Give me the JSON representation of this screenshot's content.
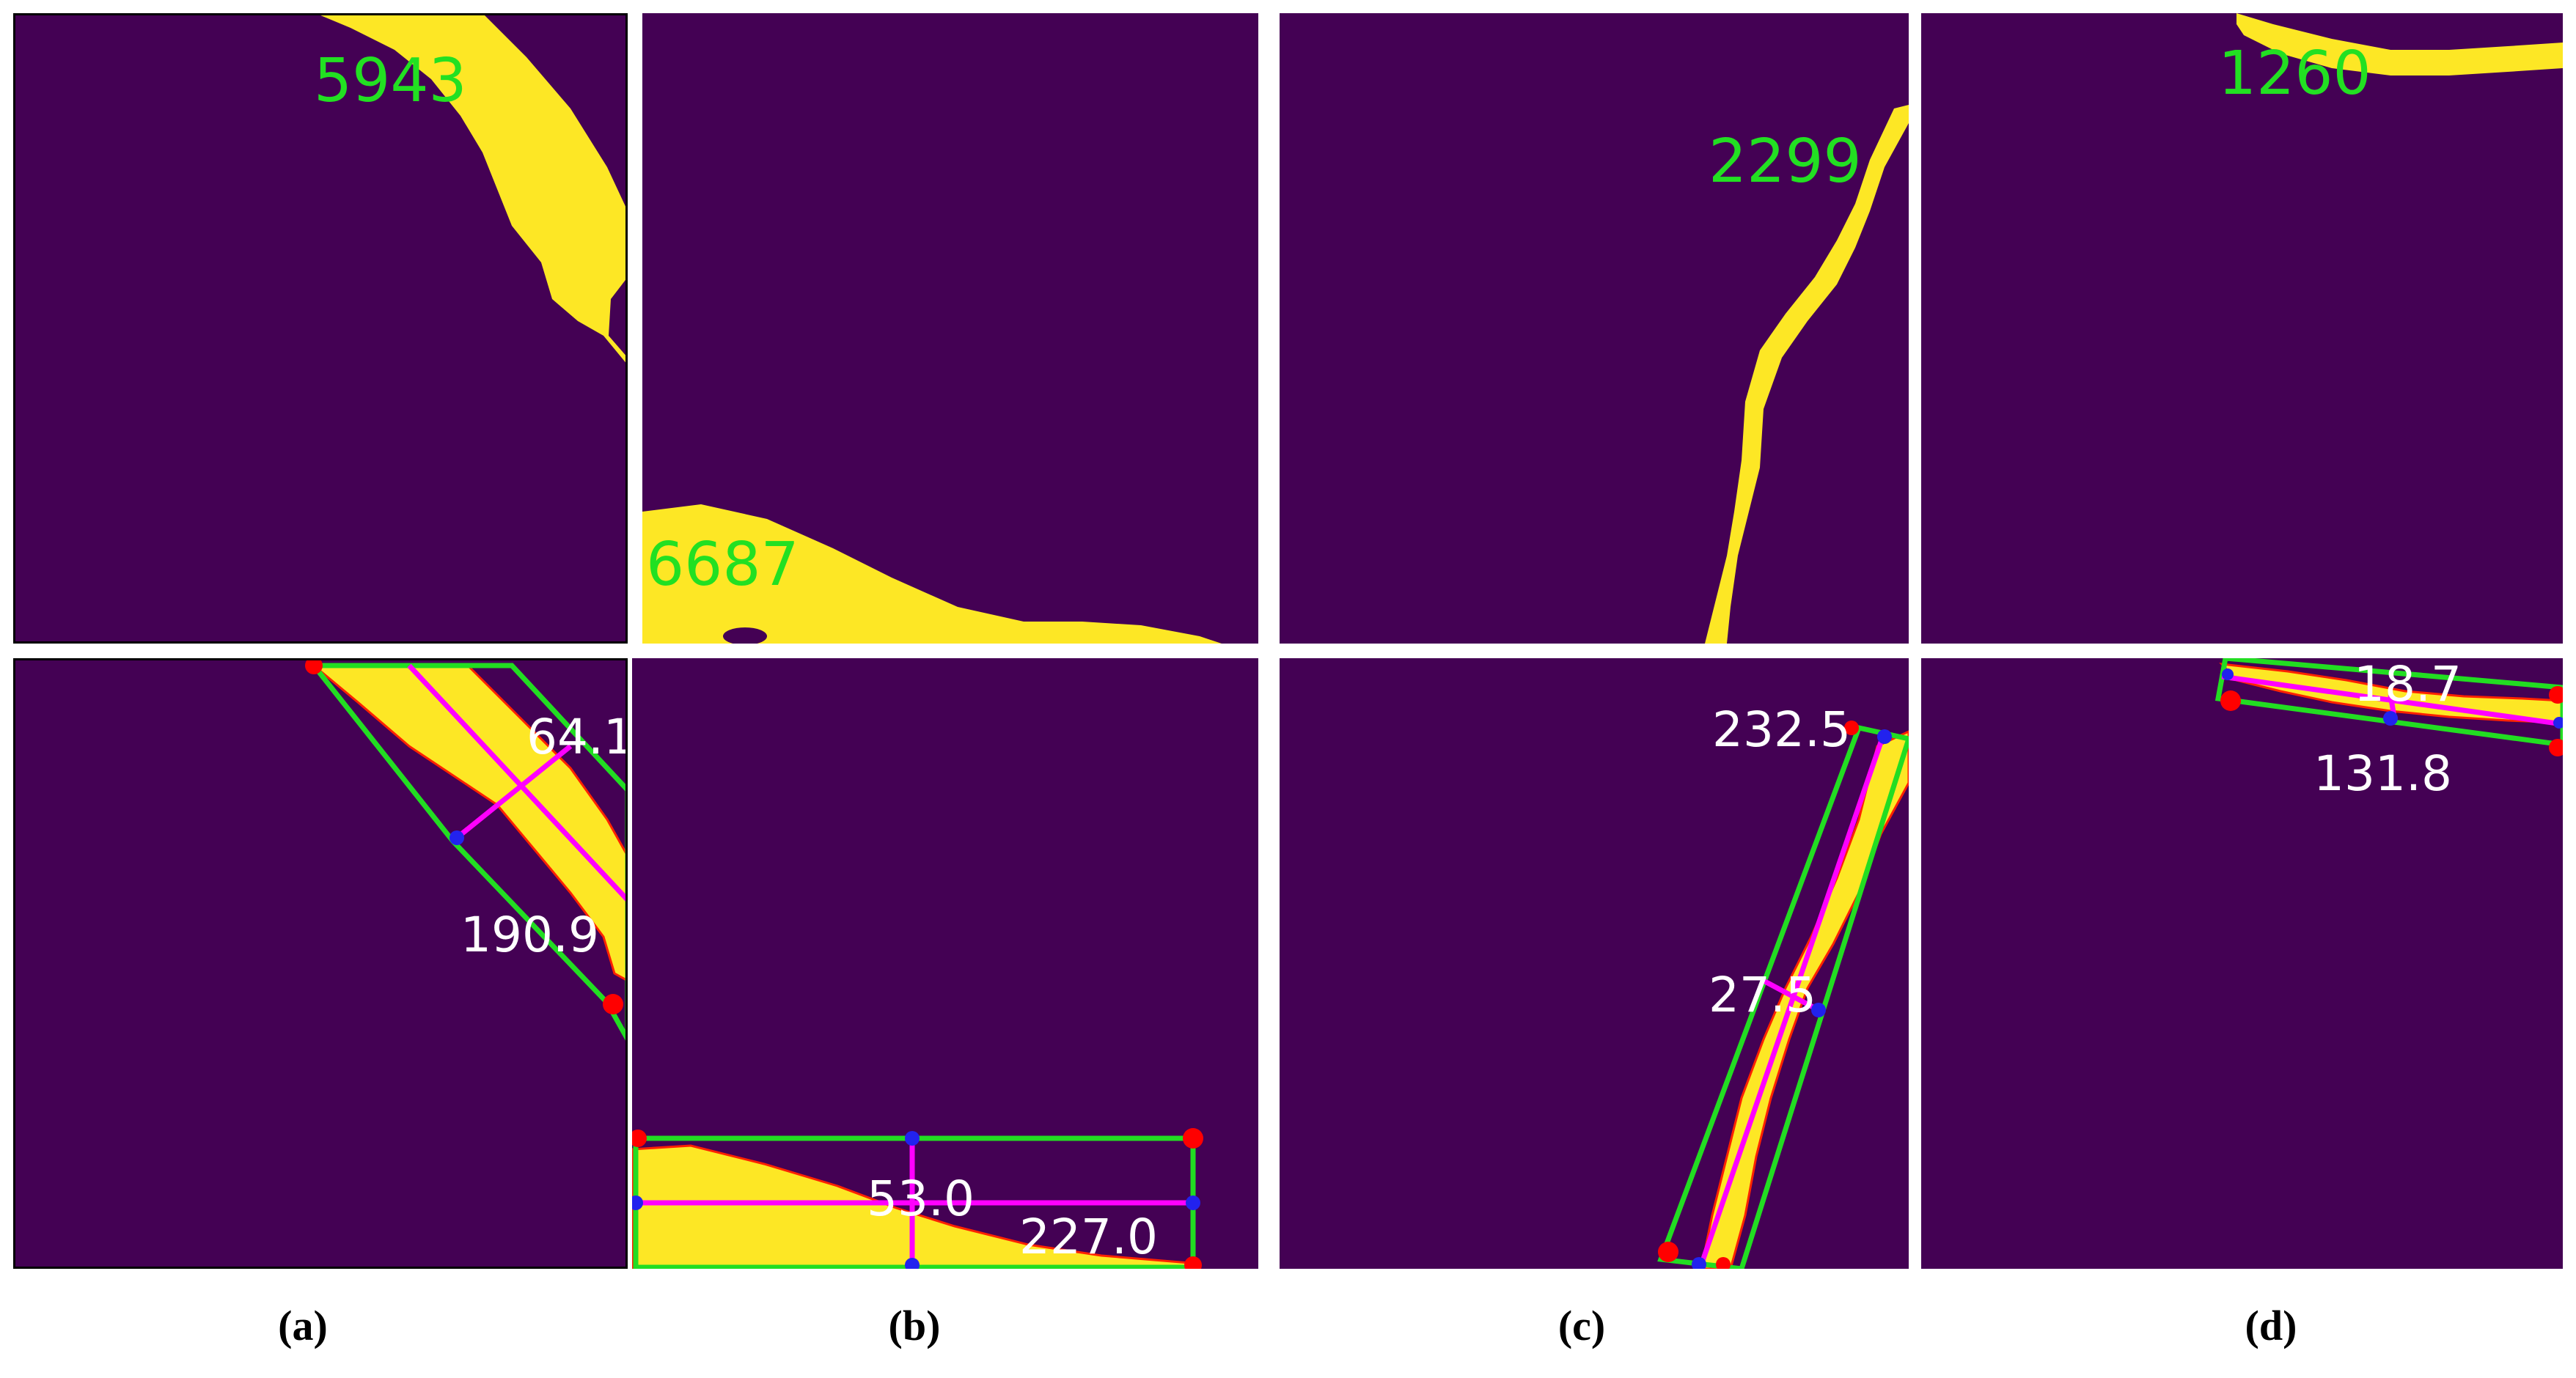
{
  "colors": {
    "background": "#440154",
    "region": "#fde725",
    "count_label": "#22e022",
    "measure_label": "#ffffff",
    "box_edge": "#22dd22",
    "axis_line": "#ff00ff",
    "corner_point": "#ff0000",
    "mid_point": "#2222ee",
    "contour": "#ff2200"
  },
  "panels": [
    {
      "caption": "(a)",
      "top_label": "5943",
      "bottom_width": "64.1",
      "bottom_length": "190.9"
    },
    {
      "caption": "(b)",
      "top_label": "6687",
      "bottom_width": "53.0",
      "bottom_length": "227.0"
    },
    {
      "caption": "(c)",
      "top_label": "2299",
      "bottom_width": "27.5",
      "bottom_length": "232.5"
    },
    {
      "caption": "(d)",
      "top_label": "1260",
      "bottom_width": "18.7",
      "bottom_length": "131.8"
    }
  ]
}
